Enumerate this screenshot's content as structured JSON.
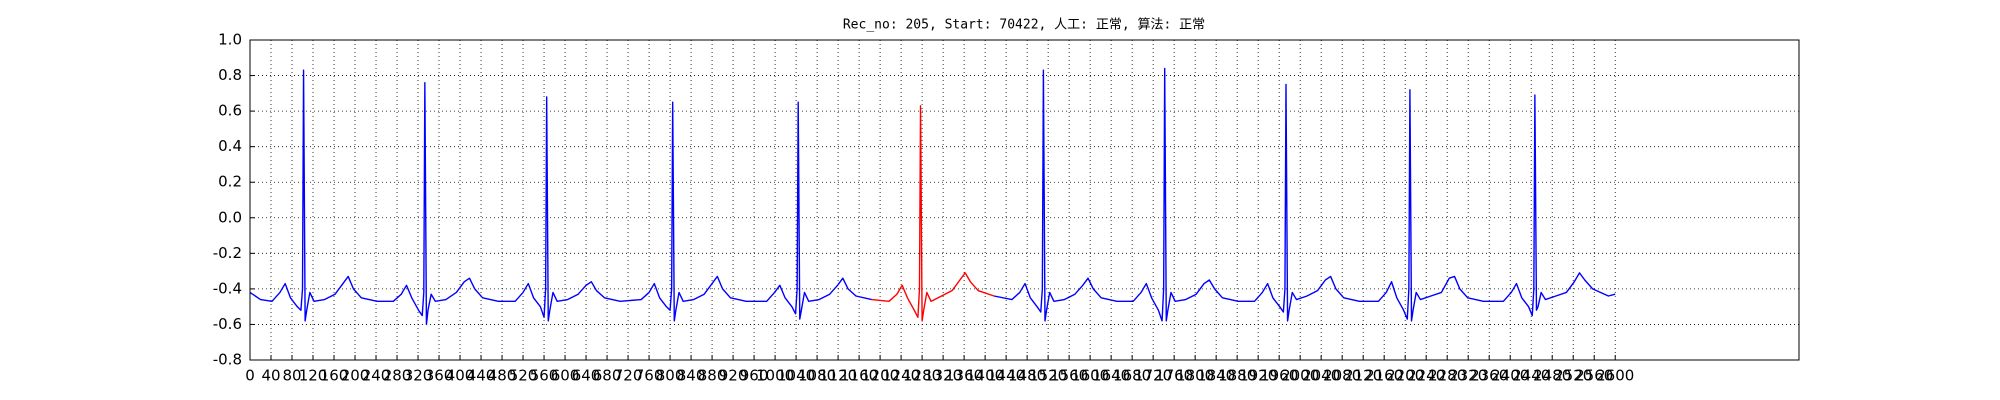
{
  "chart_data": {
    "type": "line",
    "title": "Rec_no: 205, Start: 70422, 人工: 正常, 算法: 正常",
    "xlim": [
      0,
      2950
    ],
    "xticks": [
      0,
      40,
      80,
      120,
      160,
      200,
      240,
      280,
      320,
      360,
      400,
      440,
      480,
      520,
      560,
      600,
      640,
      680,
      720,
      760,
      800,
      840,
      880,
      920,
      960,
      1000,
      1040,
      1080,
      1120,
      1160,
      1200,
      1240,
      1280,
      1320,
      1360,
      1400,
      1440,
      1480,
      1520,
      1560,
      1600,
      1640,
      1680,
      1720,
      1760,
      1800,
      1840,
      1880,
      1920,
      1960,
      2000,
      2040,
      2080,
      2120,
      2160,
      2200,
      2240,
      2280,
      2320,
      2360,
      2400,
      2440,
      2480,
      2520,
      2560,
      2600
    ],
    "ylim": [
      -0.8,
      1.0
    ],
    "yticks": [
      -0.8,
      -0.6,
      -0.4,
      -0.2,
      {
        "value": 0,
        "label": "0.0"
      },
      0.2,
      0.4,
      0.6,
      0.8,
      {
        "value": 1,
        "label": "1.0"
      }
    ],
    "grid": true,
    "series": [
      {
        "color": "#0000ff",
        "x": [
          0,
          20,
          42,
          57,
          67,
          77,
          90,
          97,
          100,
          102,
          105,
          108,
          114,
          122,
          142,
          162,
          177,
          187,
          197,
          212,
          242,
          273,
          288,
          298,
          308,
          321,
          328,
          331,
          333,
          336,
          339,
          345,
          353,
          373,
          393,
          408,
          418,
          428,
          443,
          473,
          505,
          520,
          530,
          540,
          553,
          560,
          563,
          565,
          568,
          571,
          577,
          585,
          605,
          625,
          640,
          650,
          660,
          675,
          705,
          745,
          760,
          770,
          780,
          793,
          800,
          803,
          805,
          808,
          811,
          817,
          825,
          845,
          865,
          880,
          890,
          900,
          915,
          945,
          984,
          999,
          1009,
          1019,
          1032,
          1039,
          1042,
          1044,
          1047,
          1050,
          1056,
          1064,
          1084,
          1104,
          1119,
          1129,
          1139,
          1154,
          1184,
          1217,
          1232,
          1242,
          1252,
          1265,
          1272,
          1275,
          1277,
          1280,
          1283,
          1289,
          1297,
          1317,
          1337,
          1352,
          1362,
          1372,
          1387,
          1417,
          1451,
          1466,
          1476,
          1486,
          1499,
          1506,
          1509,
          1511,
          1514,
          1517,
          1523,
          1531,
          1551,
          1571,
          1586,
          1596,
          1606,
          1621,
          1651,
          1682,
          1697,
          1707,
          1717,
          1730,
          1737,
          1740,
          1742,
          1745,
          1748,
          1754,
          1762,
          1782,
          1802,
          1817,
          1827,
          1837,
          1852,
          1882,
          1913,
          1928,
          1938,
          1948,
          1961,
          1968,
          1971,
          1973,
          1976,
          1979,
          1985,
          1993,
          2013,
          2033,
          2048,
          2058,
          2068,
          2083,
          2113,
          2149,
          2164,
          2174,
          2184,
          2197,
          2204,
          2207,
          2209,
          2212,
          2215,
          2221,
          2229,
          2249,
          2269,
          2284,
          2294,
          2304,
          2319,
          2349,
          2387,
          2402,
          2412,
          2422,
          2435,
          2442,
          2445,
          2447,
          2450,
          2453,
          2459,
          2467,
          2487,
          2507,
          2522,
          2532,
          2542,
          2557,
          2587,
          2600
        ],
        "values": [
          -0.42,
          -0.46,
          -0.47,
          -0.42,
          -0.37,
          -0.45,
          -0.5,
          -0.52,
          -0.4,
          0.83,
          -0.58,
          -0.52,
          -0.42,
          -0.47,
          -0.46,
          -0.43,
          -0.37,
          -0.33,
          -0.4,
          -0.45,
          -0.47,
          -0.47,
          -0.43,
          -0.38,
          -0.45,
          -0.52,
          -0.55,
          -0.42,
          0.76,
          -0.6,
          -0.52,
          -0.43,
          -0.47,
          -0.46,
          -0.42,
          -0.36,
          -0.34,
          -0.4,
          -0.45,
          -0.47,
          -0.47,
          -0.42,
          -0.37,
          -0.45,
          -0.5,
          -0.56,
          -0.4,
          0.68,
          -0.58,
          -0.52,
          -0.42,
          -0.47,
          -0.46,
          -0.43,
          -0.38,
          -0.36,
          -0.41,
          -0.45,
          -0.47,
          -0.46,
          -0.42,
          -0.37,
          -0.45,
          -0.5,
          -0.52,
          -0.4,
          0.65,
          -0.58,
          -0.52,
          -0.42,
          -0.47,
          -0.46,
          -0.43,
          -0.37,
          -0.33,
          -0.4,
          -0.45,
          -0.47,
          -0.47,
          -0.42,
          -0.38,
          -0.45,
          -0.5,
          -0.54,
          -0.4,
          0.65,
          -0.57,
          -0.52,
          -0.42,
          -0.47,
          -0.46,
          -0.43,
          -0.38,
          -0.34,
          -0.4,
          -0.44,
          -0.46,
          null,
          null,
          null,
          null,
          null,
          null,
          null,
          null,
          null,
          null,
          null,
          null,
          null,
          null,
          null,
          null,
          null,
          null,
          -0.44,
          -0.46,
          -0.42,
          -0.37,
          -0.45,
          -0.5,
          -0.53,
          -0.4,
          0.83,
          -0.58,
          -0.52,
          -0.42,
          -0.47,
          -0.46,
          -0.43,
          -0.38,
          -0.34,
          -0.4,
          -0.45,
          -0.47,
          -0.47,
          -0.42,
          -0.37,
          -0.45,
          -0.52,
          -0.58,
          -0.4,
          0.84,
          -0.58,
          -0.52,
          -0.42,
          -0.47,
          -0.46,
          -0.43,
          -0.37,
          -0.35,
          -0.4,
          -0.45,
          -0.47,
          -0.47,
          -0.42,
          -0.37,
          -0.45,
          -0.5,
          -0.53,
          -0.4,
          0.75,
          -0.58,
          -0.52,
          -0.42,
          -0.46,
          -0.44,
          -0.41,
          -0.35,
          -0.33,
          -0.4,
          -0.45,
          -0.47,
          -0.47,
          -0.42,
          -0.36,
          -0.45,
          -0.52,
          -0.57,
          -0.4,
          0.72,
          -0.58,
          -0.52,
          -0.42,
          -0.46,
          -0.44,
          -0.42,
          -0.34,
          -0.33,
          -0.4,
          -0.45,
          -0.47,
          -0.47,
          -0.42,
          -0.37,
          -0.45,
          -0.5,
          -0.55,
          -0.4,
          0.69,
          -0.52,
          -0.5,
          -0.42,
          -0.46,
          -0.44,
          -0.42,
          -0.36,
          -0.31,
          -0.35,
          -0.4,
          -0.44,
          -0.43
        ]
      },
      {
        "color": "#ff0000",
        "x": [
          1184,
          1217,
          1232,
          1242,
          1252,
          1265,
          1272,
          1275,
          1277,
          1280,
          1283,
          1289,
          1297,
          1317,
          1337,
          1352,
          1362,
          1372,
          1387,
          1417
        ],
        "values": [
          -0.46,
          -0.47,
          -0.43,
          -0.38,
          -0.45,
          -0.52,
          -0.56,
          -0.4,
          0.63,
          -0.58,
          -0.52,
          -0.42,
          -0.47,
          -0.44,
          -0.41,
          -0.35,
          -0.31,
          -0.36,
          -0.41,
          -0.44
        ]
      }
    ]
  }
}
